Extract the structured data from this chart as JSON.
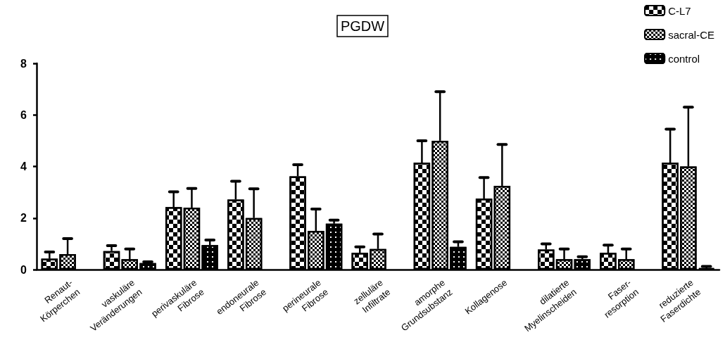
{
  "chart_data": {
    "type": "bar",
    "title": "PGDW",
    "categories": [
      "Renaut-\nKörperchen",
      "vaskuläre\nVeränderungen",
      "perivaskuläre\nFibrose",
      "endoneurale\nFibrose",
      "perineurale\nFibrose",
      "zelluläre\nInfiltrate",
      "amorphe\nGrundsubstanz",
      "Kollagenose",
      "dilatierte\nMyelinscheiden",
      "Faser-\nresorption",
      "reduzierte\nFaserdichte"
    ],
    "series": [
      {
        "name": "C-L7",
        "color": "#000000",
        "values": [
          0.42,
          0.72,
          2.42,
          2.72,
          3.62,
          0.65,
          4.15,
          2.75,
          0.78,
          0.65,
          4.15
        ],
        "errors": [
          [
            0.42,
            0.68
          ],
          [
            0.72,
            0.93
          ],
          [
            2.42,
            3.02
          ],
          [
            2.72,
            3.43
          ],
          [
            3.62,
            4.07
          ],
          [
            0.65,
            0.88
          ],
          [
            4.15,
            5.0
          ],
          [
            2.75,
            3.57
          ],
          [
            0.78,
            1.0
          ],
          [
            0.65,
            0.95
          ],
          [
            4.15,
            5.45
          ]
        ]
      },
      {
        "name": "sacral-CE",
        "color": "#000000",
        "values": [
          0.6,
          0.4,
          2.4,
          2.0,
          1.5,
          0.8,
          5.0,
          3.25,
          0.4,
          0.4,
          4.0
        ],
        "errors": [
          [
            0.6,
            1.2
          ],
          [
            0.4,
            0.8
          ],
          [
            2.4,
            3.15
          ],
          [
            2.0,
            3.13
          ],
          [
            1.5,
            2.35
          ],
          [
            0.8,
            1.38
          ],
          [
            5.0,
            6.9
          ],
          [
            3.25,
            4.85
          ],
          [
            0.4,
            0.8
          ],
          [
            0.4,
            0.8
          ],
          [
            4.0,
            6.3
          ]
        ]
      },
      {
        "name": "control",
        "color": "#000000",
        "values": [
          null,
          0.25,
          0.95,
          null,
          1.78,
          null,
          0.88,
          null,
          0.4,
          null,
          0.05
        ],
        "errors": [
          null,
          [
            0.25,
            0.3
          ],
          [
            0.95,
            1.15
          ],
          null,
          [
            1.78,
            1.92
          ],
          null,
          [
            0.88,
            1.08
          ],
          null,
          [
            0.4,
            0.5
          ],
          null,
          [
            0.05,
            0.12
          ]
        ]
      }
    ],
    "ylim": [
      0,
      8
    ],
    "yticks": [
      0,
      2,
      4,
      6,
      8
    ],
    "grid": false,
    "legend": "top right"
  }
}
